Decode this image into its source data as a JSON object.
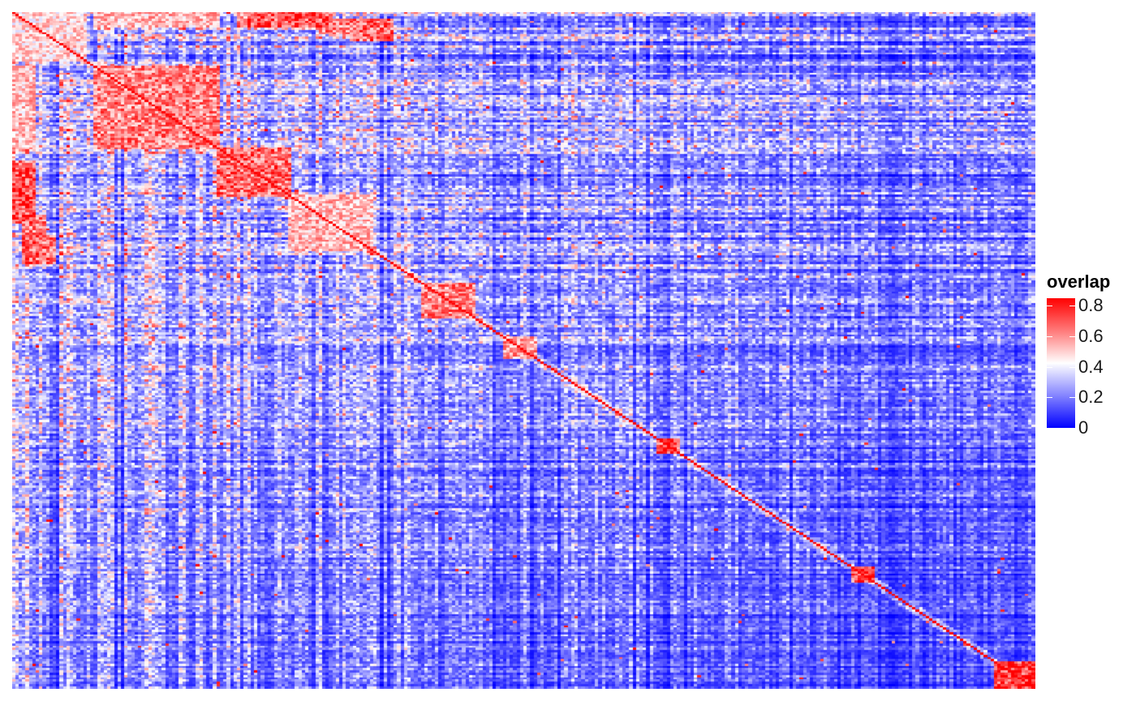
{
  "chart_data": {
    "type": "heatmap",
    "title": "",
    "xlabel": "",
    "ylabel": "",
    "matrix_size": 300,
    "diagonal_value": 0.85,
    "color_scale": {
      "low": "#0000ff",
      "mid": "#ffffff",
      "high": "#ff0000",
      "range": [
        0,
        0.85
      ]
    },
    "legend": {
      "title": "overlap",
      "placement": "right",
      "ticks": [
        {
          "value": 0.8,
          "label": "0.8"
        },
        {
          "value": 0.6,
          "label": "0.6"
        },
        {
          "value": 0.4,
          "label": "0.4"
        },
        {
          "value": 0.2,
          "label": "0.2"
        },
        {
          "value": 0,
          "label": "0"
        }
      ]
    },
    "blocks": [
      {
        "start": 0.0,
        "end": 0.07,
        "value": 0.55
      },
      {
        "start": 0.08,
        "end": 0.2,
        "value": 0.7
      },
      {
        "start": 0.2,
        "end": 0.27,
        "value": 0.75
      },
      {
        "start": 0.27,
        "end": 0.35,
        "value": 0.6
      },
      {
        "start": 0.4,
        "end": 0.45,
        "value": 0.7
      },
      {
        "start": 0.48,
        "end": 0.51,
        "value": 0.65
      },
      {
        "start": 0.63,
        "end": 0.65,
        "value": 0.8
      },
      {
        "start": 0.82,
        "end": 0.84,
        "value": 0.8
      },
      {
        "start": 0.96,
        "end": 1.0,
        "value": 0.85
      }
    ],
    "off_diagonal_hotspots": [
      {
        "rows": [
          0.0,
          0.02
        ],
        "cols": [
          0.23,
          0.31
        ],
        "value": 0.8
      },
      {
        "rows": [
          0.01,
          0.04
        ],
        "cols": [
          0.33,
          0.37
        ],
        "value": 0.75
      },
      {
        "rows": [
          0.22,
          0.28
        ],
        "cols": [
          0.0,
          0.02
        ],
        "value": 0.7
      },
      {
        "rows": [
          0.3,
          0.37
        ],
        "cols": [
          0.01,
          0.03
        ],
        "value": 0.7
      },
      {
        "rows": [
          0.08,
          0.2
        ],
        "cols": [
          0.0,
          0.02
        ],
        "value": 0.6
      },
      {
        "rows": [
          0.0,
          0.02
        ],
        "cols": [
          0.08,
          0.2
        ],
        "value": 0.55
      }
    ]
  }
}
